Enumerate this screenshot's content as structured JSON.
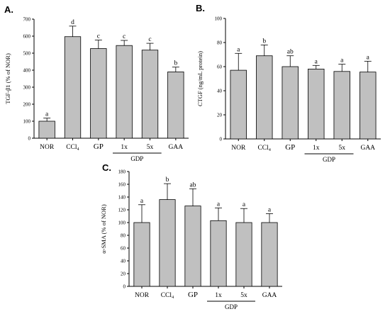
{
  "colors": {
    "bar_fill": "#c0c0c0",
    "bar_stroke": "#000000",
    "axis": "#000000"
  },
  "chart_data": [
    {
      "id": "A",
      "panel_label": "A.",
      "type": "bar",
      "ylabel": "TGF-β1 (% of NOR)",
      "ylim": [
        0,
        700
      ],
      "yticks": [
        0,
        100,
        200,
        300,
        400,
        500,
        600,
        700
      ],
      "categories": [
        "NOR",
        "CCl₄",
        "GP",
        "1x",
        "5x",
        "GAA"
      ],
      "group_label": "GDP",
      "group_span": [
        3,
        4
      ],
      "values": [
        100,
        597,
        527,
        545,
        518,
        390
      ],
      "errors": [
        18,
        62,
        50,
        30,
        40,
        28
      ],
      "significance": [
        "a",
        "d",
        "c",
        "c",
        "c",
        "b"
      ],
      "grid": false
    },
    {
      "id": "B",
      "panel_label": "B.",
      "type": "bar",
      "ylabel": "CTGF (ng/mL protein)",
      "ylim": [
        0,
        100
      ],
      "yticks": [
        0,
        20,
        40,
        60,
        80,
        100
      ],
      "categories": [
        "NOR",
        "CCl₄",
        "GP",
        "1x",
        "5x",
        "GAA"
      ],
      "group_label": "GDP",
      "group_span": [
        3,
        4
      ],
      "values": [
        57,
        69,
        60,
        58,
        56,
        55.5
      ],
      "errors": [
        14,
        9,
        9,
        3,
        6,
        9
      ],
      "significance": [
        "a",
        "b",
        "ab",
        "a",
        "a",
        "a"
      ],
      "grid": false
    },
    {
      "id": "C",
      "panel_label": "C.",
      "type": "bar",
      "ylabel": "α-SMA (% of NOR)",
      "ylim": [
        0,
        180
      ],
      "yticks": [
        0,
        20,
        40,
        60,
        80,
        100,
        120,
        140,
        160,
        180
      ],
      "categories": [
        "NOR",
        "CCl₄",
        "GP",
        "1x",
        "5x",
        "GAA"
      ],
      "group_label": "GDP",
      "group_span": [
        3,
        4
      ],
      "values": [
        100,
        136,
        126,
        103,
        100,
        100
      ],
      "errors": [
        28,
        25,
        27,
        20,
        22,
        14
      ],
      "significance": [
        "a",
        "b",
        "ab",
        "a",
        "a",
        "a"
      ],
      "grid": false
    }
  ]
}
